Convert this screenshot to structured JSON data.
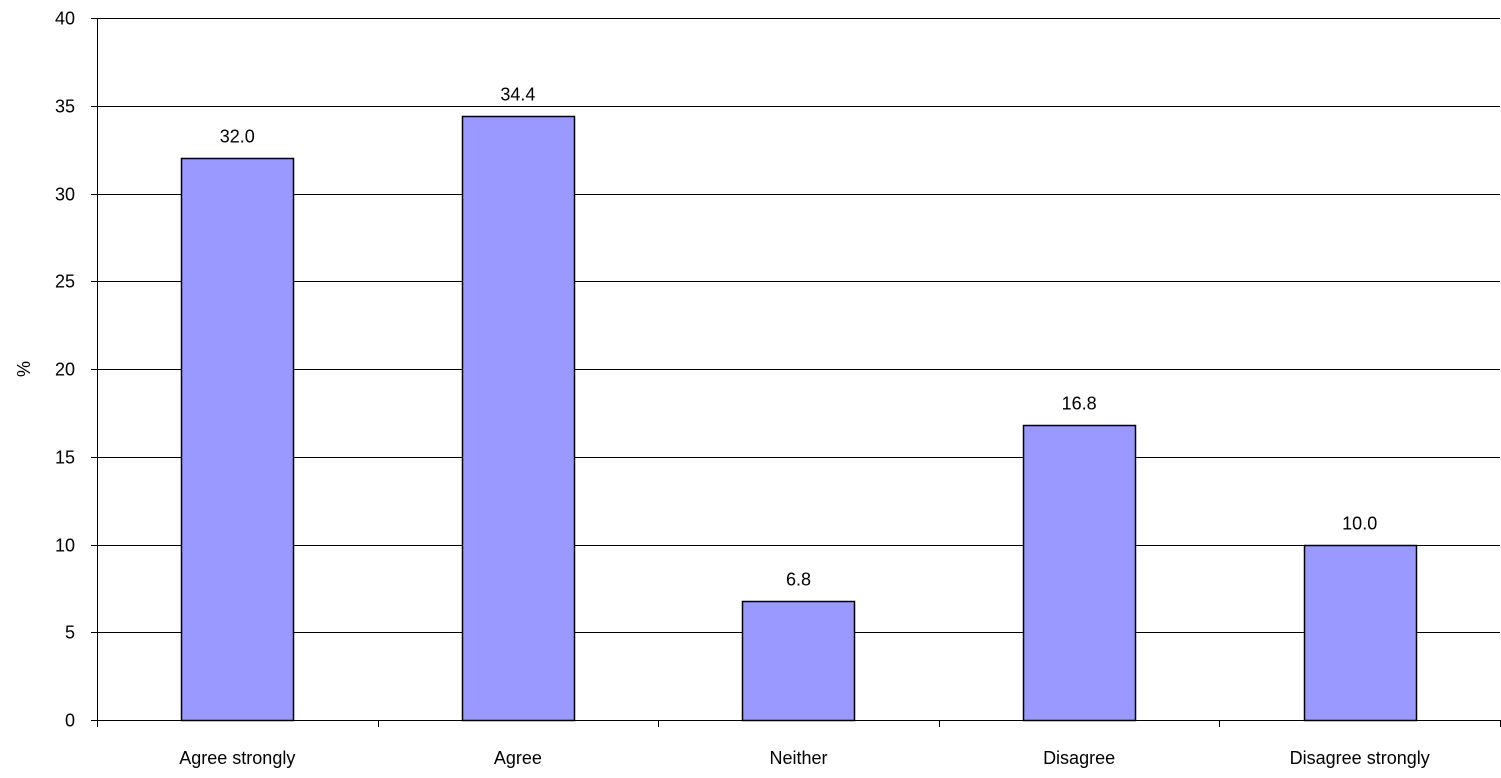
{
  "chart_data": {
    "type": "bar",
    "categories": [
      "Agree strongly",
      "Agree",
      "Neither",
      "Disagree",
      "Disagree strongly"
    ],
    "values": [
      32.0,
      34.4,
      6.8,
      16.8,
      10.0
    ],
    "value_labels": [
      "32.0",
      "34.4",
      "6.8",
      "16.8",
      "10.0"
    ],
    "title": "",
    "xlabel": "",
    "ylabel": "%",
    "ylim": [
      0,
      40
    ],
    "yticks": [
      0,
      5,
      10,
      15,
      20,
      25,
      30,
      35,
      40
    ],
    "ytick_labels": [
      "0",
      "5",
      "10",
      "15",
      "20",
      "25",
      "30",
      "35",
      "40"
    ],
    "grid": true,
    "legend": "none",
    "bar_color": "#9999ff",
    "bar_edge_color": "#000000"
  }
}
